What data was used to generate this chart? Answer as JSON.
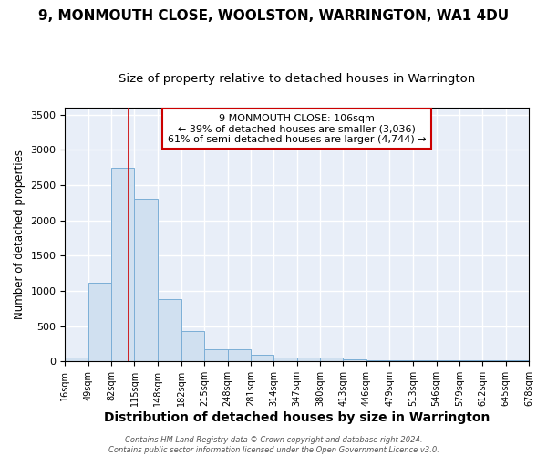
{
  "title": "9, MONMOUTH CLOSE, WOOLSTON, WARRINGTON, WA1 4DU",
  "subtitle": "Size of property relative to detached houses in Warrington",
  "xlabel": "Distribution of detached houses by size in Warrington",
  "ylabel": "Number of detached properties",
  "bin_edges": [
    16,
    49,
    82,
    115,
    148,
    182,
    215,
    248,
    281,
    314,
    347,
    380,
    413,
    446,
    479,
    513,
    546,
    579,
    612,
    645,
    678
  ],
  "bar_heights": [
    50,
    1120,
    2750,
    2300,
    880,
    430,
    170,
    170,
    90,
    50,
    50,
    50,
    30,
    20,
    20,
    20,
    15,
    15,
    15,
    15
  ],
  "bar_color": "#d0e0f0",
  "bar_edge_color": "#7baed6",
  "background_color": "#e8eef8",
  "grid_color": "#ffffff",
  "property_size": 106,
  "red_line_color": "#cc0000",
  "annotation_line1": "9 MONMOUTH CLOSE: 106sqm",
  "annotation_line2": "← 39% of detached houses are smaller (3,036)",
  "annotation_line3": "61% of semi-detached houses are larger (4,744) →",
  "annotation_box_color": "#ffffff",
  "annotation_border_color": "#cc0000",
  "footer_text": "Contains HM Land Registry data © Crown copyright and database right 2024.\nContains public sector information licensed under the Open Government Licence v3.0.",
  "ylim": [
    0,
    3600
  ],
  "title_fontsize": 11,
  "subtitle_fontsize": 9.5,
  "ylabel_fontsize": 8.5,
  "xlabel_fontsize": 10,
  "tick_fontsize": 7,
  "ytick_fontsize": 8
}
